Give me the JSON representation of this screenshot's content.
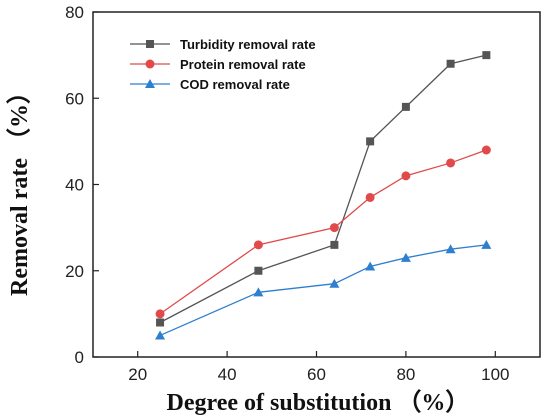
{
  "chart_data": {
    "type": "line",
    "xlabel": "Degree of substitution （%）",
    "ylabel": "Removal rate （%）",
    "xlim": [
      10,
      110
    ],
    "ylim": [
      0,
      80
    ],
    "xticks": [
      20,
      40,
      60,
      80,
      100
    ],
    "yticks": [
      0,
      20,
      40,
      60,
      80
    ],
    "grid": false,
    "legend_position": "top-left",
    "series": [
      {
        "name": "Turbidity removal rate",
        "color": "#555555",
        "marker": "square",
        "points": [
          [
            25,
            8
          ],
          [
            47,
            20
          ],
          [
            64,
            26
          ],
          [
            72,
            50
          ],
          [
            80,
            58
          ],
          [
            90,
            68
          ],
          [
            98,
            70
          ]
        ]
      },
      {
        "name": "Protein removal rate",
        "color": "#e04a4a",
        "marker": "circle",
        "points": [
          [
            25,
            10
          ],
          [
            47,
            26
          ],
          [
            64,
            30
          ],
          [
            72,
            37
          ],
          [
            80,
            42
          ],
          [
            90,
            45
          ],
          [
            98,
            48
          ]
        ]
      },
      {
        "name": "COD removal rate",
        "color": "#2f7fcf",
        "marker": "triangle",
        "points": [
          [
            25,
            5
          ],
          [
            47,
            15
          ],
          [
            64,
            17
          ],
          [
            72,
            21
          ],
          [
            80,
            23
          ],
          [
            90,
            25
          ],
          [
            98,
            26
          ]
        ]
      }
    ]
  }
}
